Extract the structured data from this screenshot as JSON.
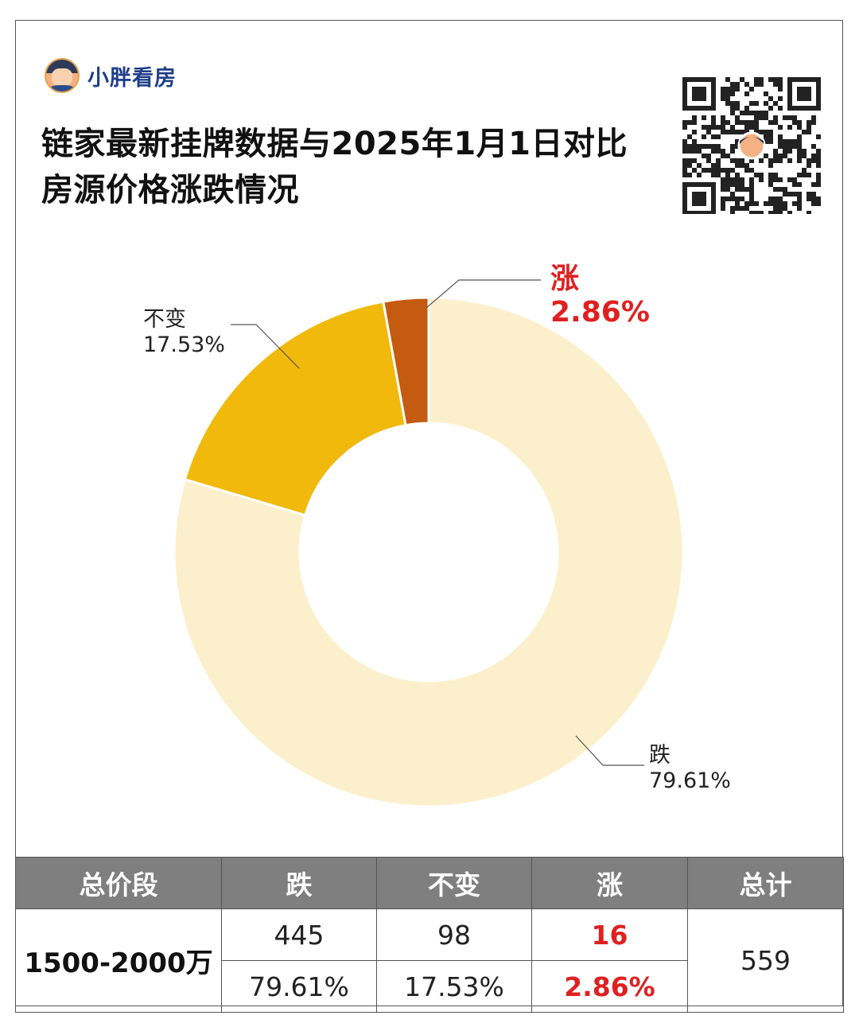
{
  "brand": {
    "name": "小胖看房"
  },
  "title": {
    "line1": "链家最新挂牌数据与2025年1月1日对比",
    "line2": "房源价格涨跌情况"
  },
  "colors": {
    "down": "#fcf0cc",
    "flat": "#f0b90b",
    "up": "#c55a11",
    "accent_red": "#e02020",
    "header_gray": "#7f7f7f"
  },
  "chart_data": {
    "type": "pie",
    "subtype": "donut",
    "series": [
      {
        "name": "涨",
        "value": 2.86,
        "label": "2.86%"
      },
      {
        "name": "跌",
        "value": 79.61,
        "label": "79.61%"
      },
      {
        "name": "不变",
        "value": 17.53,
        "label": "17.53%"
      }
    ]
  },
  "table": {
    "headers": [
      "总价段",
      "跌",
      "不变",
      "涨",
      "总计"
    ],
    "range": "1500-2000万",
    "counts": {
      "down": "445",
      "flat": "98",
      "up": "16"
    },
    "percents": {
      "down": "79.61%",
      "flat": "17.53%",
      "up": "2.86%"
    },
    "total": "559"
  }
}
